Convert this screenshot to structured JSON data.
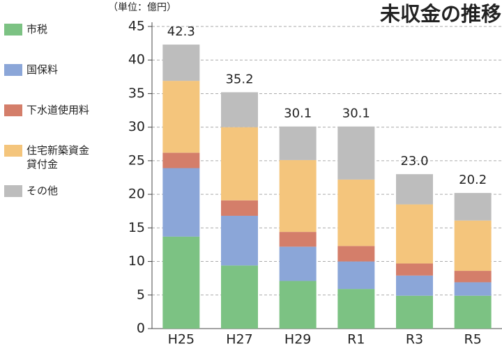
{
  "chart_data": {
    "type": "stacked_bar",
    "title": "未収金の推移",
    "unit_label": "（単位：億円）",
    "categories": [
      "H25",
      "H27",
      "H29",
      "R1",
      "R3",
      "R5"
    ],
    "series": [
      {
        "name": "市税",
        "color": "#7cc283",
        "values": [
          13.7,
          9.4,
          7.1,
          5.9,
          4.9,
          4.9
        ]
      },
      {
        "name": "国保料",
        "color": "#8ba6d8",
        "values": [
          10.2,
          7.4,
          5.1,
          4.1,
          3.0,
          2.0
        ]
      },
      {
        "name": "下水道使用料",
        "color": "#d47e6a",
        "values": [
          2.3,
          2.3,
          2.2,
          2.3,
          1.8,
          1.7
        ]
      },
      {
        "name": "住宅新築資金貸付金",
        "color": "#f4c57c",
        "values": [
          10.7,
          10.9,
          10.7,
          9.9,
          8.8,
          7.5
        ]
      },
      {
        "name": "その他",
        "color": "#bdbdbd",
        "values": [
          5.4,
          5.2,
          5.0,
          7.9,
          4.5,
          4.1
        ]
      }
    ],
    "totals": [
      42.3,
      35.2,
      30.1,
      30.1,
      23.0,
      20.2
    ],
    "total_labels": [
      "42.3",
      "35.2",
      "30.1",
      "30.1",
      "23.0",
      "20.2"
    ],
    "ylim": [
      0,
      45
    ],
    "yticks": [
      0,
      5,
      10,
      15,
      20,
      25,
      30,
      35,
      40,
      45
    ],
    "grid": true
  }
}
